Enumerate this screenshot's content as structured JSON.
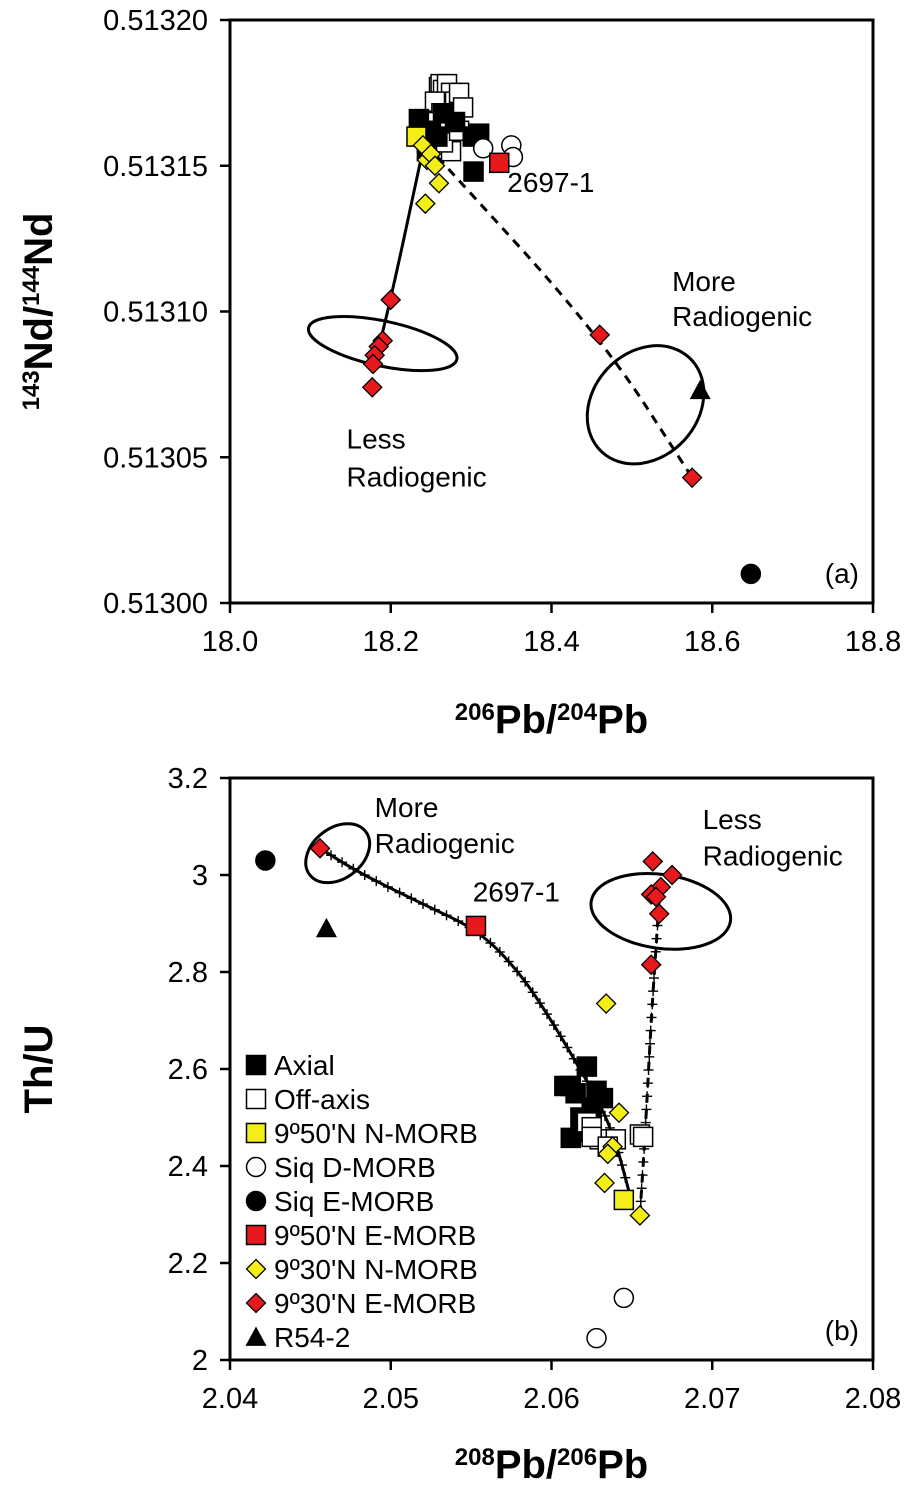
{
  "chart_data": [
    {
      "type": "scatter",
      "panel_label": "(a)",
      "xlabel": {
        "base": "",
        "parts": [
          {
            "sup": "206"
          },
          {
            "text": "Pb/"
          },
          {
            "sup": "204"
          },
          {
            "text": "Pb"
          }
        ]
      },
      "ylabel": {
        "parts": [
          {
            "sup": "143"
          },
          {
            "text": "Nd/"
          },
          {
            "sup": "144"
          },
          {
            "text": "Nd"
          }
        ]
      },
      "xlim": [
        18.0,
        18.8
      ],
      "ylim": [
        0.513,
        0.5132
      ],
      "xticks": [
        "18.0",
        "18.2",
        "18.4",
        "18.6",
        "18.8"
      ],
      "yticks": [
        "0.51300",
        "0.51305",
        "0.51310",
        "0.51315",
        "0.51320"
      ],
      "series": [
        {
          "name": "Off-axis",
          "marker": "square-open",
          "points": [
            [
              18.26,
              0.513177
            ],
            [
              18.262,
              0.513178
            ],
            [
              18.265,
              0.513176
            ],
            [
              18.268,
              0.513172
            ],
            [
              18.27,
              0.513178
            ],
            [
              18.275,
              0.513175
            ],
            [
              18.28,
              0.513172
            ],
            [
              18.285,
              0.513175
            ],
            [
              18.29,
              0.51317
            ],
            [
              18.255,
              0.513172
            ],
            [
              18.263,
              0.513168
            ],
            [
              18.272,
              0.51316
            ],
            [
              18.275,
              0.513155
            ],
            [
              18.265,
              0.513158
            ],
            [
              18.258,
              0.513165
            ],
            [
              18.285,
              0.513162
            ]
          ]
        },
        {
          "name": "Axial",
          "marker": "square-filled",
          "points": [
            [
              18.235,
              0.513166
            ],
            [
              18.25,
              0.513162
            ],
            [
              18.258,
              0.51316
            ],
            [
              18.245,
              0.513158
            ],
            [
              18.302,
              0.51316
            ],
            [
              18.31,
              0.513161
            ],
            [
              18.28,
              0.513165
            ],
            [
              18.303,
              0.513148
            ],
            [
              18.245,
              0.513155
            ],
            [
              18.265,
              0.513168
            ]
          ]
        },
        {
          "name": "Siq D-MORB",
          "marker": "circle-open",
          "points": [
            [
              18.315,
              0.513156
            ],
            [
              18.35,
              0.513157
            ],
            [
              18.352,
              0.513153
            ]
          ]
        },
        {
          "name": "Siq E-MORB",
          "marker": "circle-filled",
          "points": [
            [
              18.648,
              0.51301
            ]
          ]
        },
        {
          "name": "9º50'N N-MORB",
          "marker": "square-yellow",
          "points": [
            [
              18.232,
              0.51316
            ]
          ]
        },
        {
          "name": "9º50'N E-MORB",
          "marker": "square-red",
          "points": [
            [
              18.335,
              0.513151
            ]
          ]
        },
        {
          "name": "9º30'N N-MORB",
          "marker": "diamond-yellow",
          "points": [
            [
              18.24,
              0.513157
            ],
            [
              18.245,
              0.513152
            ],
            [
              18.25,
              0.513154
            ],
            [
              18.255,
              0.51315
            ],
            [
              18.26,
              0.513144
            ],
            [
              18.243,
              0.513137
            ]
          ]
        },
        {
          "name": "9º30'N E-MORB",
          "marker": "diamond-red",
          "points": [
            [
              18.2,
              0.513104
            ],
            [
              18.19,
              0.51309
            ],
            [
              18.185,
              0.513088
            ],
            [
              18.18,
              0.513085
            ],
            [
              18.178,
              0.513082
            ],
            [
              18.177,
              0.513074
            ],
            [
              18.46,
              0.513092
            ],
            [
              18.575,
              0.513043
            ]
          ]
        },
        {
          "name": "R54-2",
          "marker": "triangle-filled",
          "points": [
            [
              18.585,
              0.513073
            ]
          ]
        }
      ],
      "lines": [
        {
          "style": "solid",
          "points": [
            [
              18.178,
              0.51308
            ],
            [
              18.2,
              0.513104
            ],
            [
              18.242,
              0.513158
            ]
          ]
        },
        {
          "style": "dashed",
          "points": [
            [
              18.245,
              0.513157
            ],
            [
              18.46,
              0.513092
            ],
            [
              18.575,
              0.513043
            ]
          ]
        }
      ],
      "ellipses": [
        {
          "cx": 18.19,
          "cy": 0.513089,
          "rx": 0.028,
          "ry": 2.6e-05,
          "rot": 12
        },
        {
          "cx": 18.517,
          "cy": 0.513068,
          "rx": 0.08,
          "ry": 1.8e-05,
          "rot": 43
        }
      ],
      "annotations": [
        {
          "text": "2697-1",
          "x": 18.345,
          "y": 0.513141,
          "anchor": "start"
        },
        {
          "text": "More",
          "x": 18.55,
          "y": 0.513107,
          "anchor": "start"
        },
        {
          "text": "Radiogenic",
          "x": 18.55,
          "y": 0.513095,
          "anchor": "start"
        },
        {
          "text": "Less",
          "x": 18.145,
          "y": 0.513053,
          "anchor": "start"
        },
        {
          "text": "Radiogenic",
          "x": 18.145,
          "y": 0.51304,
          "anchor": "start"
        }
      ]
    },
    {
      "type": "scatter",
      "panel_label": "(b)",
      "xlabel": {
        "parts": [
          {
            "sup": "208"
          },
          {
            "text": "Pb/"
          },
          {
            "sup": "206"
          },
          {
            "text": "Pb"
          }
        ]
      },
      "ylabel": {
        "parts": [
          {
            "text": "Th/U"
          }
        ]
      },
      "xlim": [
        2.04,
        2.08
      ],
      "ylim": [
        2.0,
        3.2
      ],
      "xticks": [
        "2.04",
        "2.05",
        "2.06",
        "2.07",
        "2.08"
      ],
      "yticks": [
        "2",
        "2.2",
        "2.4",
        "2.6",
        "2.8",
        "3",
        "3.2"
      ],
      "series": [
        {
          "name": "Axial",
          "marker": "square-filled",
          "points": [
            [
              2.0612,
              2.565
            ],
            [
              2.0622,
              2.605
            ],
            [
              2.0615,
              2.55
            ],
            [
              2.0625,
              2.52
            ],
            [
              2.0632,
              2.54
            ],
            [
              2.0618,
              2.5
            ],
            [
              2.062,
              2.47
            ],
            [
              2.0608,
              2.565
            ],
            [
              2.0612,
              2.458
            ],
            [
              2.0628,
              2.555
            ],
            [
              2.0622,
              2.49
            ]
          ]
        },
        {
          "name": "Off-axis",
          "marker": "square-open",
          "points": [
            [
              2.0622,
              2.49
            ],
            [
              2.0625,
              2.48
            ],
            [
              2.063,
              2.455
            ],
            [
              2.064,
              2.455
            ],
            [
              2.0655,
              2.465
            ],
            [
              2.0657,
              2.46
            ],
            [
              2.0625,
              2.46
            ],
            [
              2.0635,
              2.44
            ]
          ]
        },
        {
          "name": "Siq D-MORB",
          "marker": "circle-open",
          "points": [
            [
              2.0645,
              2.128
            ],
            [
              2.0628,
              2.045
            ]
          ]
        },
        {
          "name": "Siq E-MORB",
          "marker": "circle-filled",
          "points": [
            [
              2.0422,
              3.03
            ]
          ]
        },
        {
          "name": "9º50'N N-MORB",
          "marker": "square-yellow",
          "points": [
            [
              2.0645,
              2.33
            ]
          ]
        },
        {
          "name": "9º50'N E-MORB",
          "marker": "square-red",
          "points": [
            [
              2.0553,
              2.895
            ]
          ]
        },
        {
          "name": "9º30'N N-MORB",
          "marker": "diamond-yellow",
          "points": [
            [
              2.0634,
              2.735
            ],
            [
              2.0642,
              2.51
            ],
            [
              2.0638,
              2.44
            ],
            [
              2.0635,
              2.425
            ],
            [
              2.0633,
              2.365
            ],
            [
              2.0655,
              2.298
            ]
          ]
        },
        {
          "name": "9º30'N E-MORB",
          "marker": "diamond-red",
          "points": [
            [
              2.0456,
              3.055
            ],
            [
              2.0663,
              3.028
            ],
            [
              2.0675,
              3.0
            ],
            [
              2.0668,
              2.975
            ],
            [
              2.0662,
              2.96
            ],
            [
              2.0665,
              2.955
            ],
            [
              2.0667,
              2.92
            ],
            [
              2.0662,
              2.815
            ]
          ]
        },
        {
          "name": "R54-2",
          "marker": "triangle-filled",
          "points": [
            [
              2.046,
              2.89
            ]
          ]
        }
      ],
      "lines": [
        {
          "style": "solid-ticked",
          "points": [
            [
              2.0456,
              3.055
            ],
            [
              2.048,
              3.005
            ],
            [
              2.052,
              2.94
            ],
            [
              2.0555,
              2.885
            ],
            [
              2.058,
              2.8
            ],
            [
              2.06,
              2.7
            ],
            [
              2.0615,
              2.615
            ],
            [
              2.063,
              2.53
            ],
            [
              2.064,
              2.45
            ],
            [
              2.0648,
              2.35
            ]
          ]
        },
        {
          "style": "dashed-ticked",
          "points": [
            [
              2.0655,
              2.3
            ],
            [
              2.0658,
              2.45
            ],
            [
              2.0662,
              2.7
            ],
            [
              2.0665,
              2.85
            ],
            [
              2.0667,
              2.95
            ]
          ]
        }
      ],
      "ellipses": [
        {
          "cx": 2.0467,
          "cy": 3.045,
          "rx": 0.0022,
          "ry": 0.052,
          "rot": 52
        },
        {
          "cx": 2.0668,
          "cy": 2.925,
          "rx": 0.0023,
          "ry": 0.145,
          "rot": 8
        }
      ],
      "annotations": [
        {
          "text": "2697-1",
          "x": 2.0551,
          "y": 2.945,
          "anchor": "start"
        },
        {
          "text": "More",
          "x": 2.049,
          "y": 3.12,
          "anchor": "start"
        },
        {
          "text": "Radiogenic",
          "x": 2.049,
          "y": 3.045,
          "anchor": "start"
        },
        {
          "text": "Less",
          "x": 2.0694,
          "y": 3.095,
          "anchor": "start"
        },
        {
          "text": "Radiogenic",
          "x": 2.0694,
          "y": 3.02,
          "anchor": "start"
        }
      ],
      "legend": {
        "placement": "bottom-left",
        "entries": [
          {
            "label": "Axial",
            "marker": "square-filled"
          },
          {
            "label": "Off-axis",
            "marker": "square-open"
          },
          {
            "label": "9º50'N N-MORB",
            "marker": "square-yellow"
          },
          {
            "label": "Siq D-MORB",
            "marker": "circle-open"
          },
          {
            "label": "Siq E-MORB",
            "marker": "circle-filled"
          },
          {
            "label": "9º50'N E-MORB",
            "marker": "square-red"
          },
          {
            "label": "9º30'N N-MORB",
            "marker": "diamond-yellow"
          },
          {
            "label": "9º30'N E-MORB",
            "marker": "diamond-red"
          },
          {
            "label": "R54-2",
            "marker": "triangle-filled"
          }
        ]
      }
    }
  ],
  "colors": {
    "red_marker": "#e8191d",
    "yellow_marker": "#f3ee17",
    "black": "#000000",
    "white": "#ffffff"
  }
}
